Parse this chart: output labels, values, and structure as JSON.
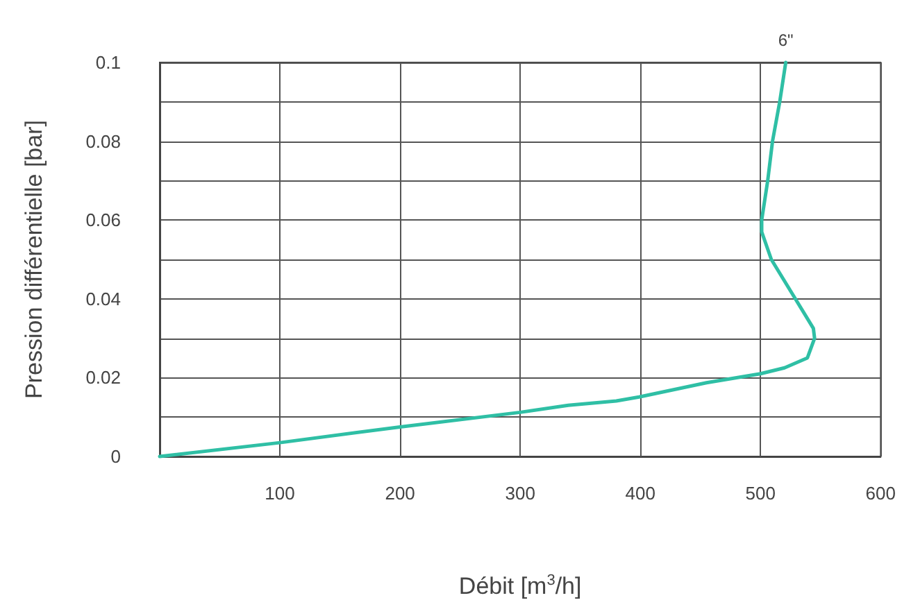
{
  "chart_data": {
    "type": "line",
    "xlabel": "Débit [m$^{3}$/h]",
    "ylabel": "Pression différentielle [bar]",
    "xlim": [
      0,
      600
    ],
    "xticks": [
      100,
      200,
      300,
      400,
      500,
      600
    ],
    "ylim": [
      0,
      0.1
    ],
    "yticks": [
      0,
      {
        "value": 0.01,
        "label": null
      },
      0.02,
      {
        "value": 0.03,
        "label": null
      },
      0.04,
      {
        "value": 0.05,
        "label": null
      },
      0.06,
      {
        "value": 0.07,
        "label": null
      },
      0.08,
      {
        "value": 0.09,
        "label": null
      },
      0.1
    ],
    "grid": true,
    "legend": false,
    "marker": "none",
    "line_style": "solid",
    "series": [
      {
        "name": "6\"",
        "color": "#2fbfa5",
        "x": [
          0,
          100,
          200,
          300,
          340,
          380,
          399,
          455,
          500,
          520,
          539,
          545,
          544,
          529,
          509,
          501,
          501,
          506,
          510,
          516,
          521
        ],
        "values": [
          0,
          0.0035,
          0.0075,
          0.0112,
          0.013,
          0.0141,
          0.0151,
          0.0187,
          0.021,
          0.0225,
          0.025,
          0.03,
          0.0325,
          0.04,
          0.05,
          0.057,
          0.06,
          0.07,
          0.08,
          0.09,
          0.1
        ]
      }
    ]
  }
}
